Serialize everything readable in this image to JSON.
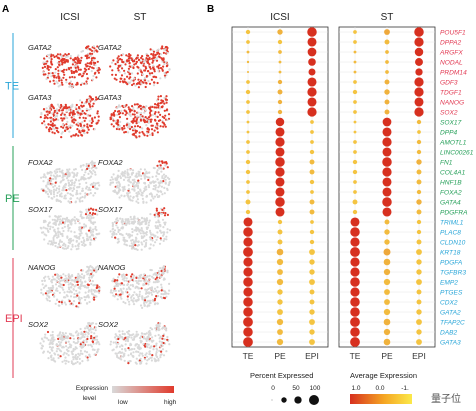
{
  "panel_a": {
    "label": "A",
    "columns": [
      "ICSI",
      "ST"
    ],
    "groups": [
      {
        "name": "TE",
        "color": "#2aa6d8",
        "genes": [
          "GATA2",
          "GATA3"
        ]
      },
      {
        "name": "PE",
        "color": "#27a05a",
        "genes": [
          "FOXA2",
          "SOX17"
        ]
      },
      {
        "name": "EPI",
        "color": "#e23b54",
        "genes": [
          "NANOG",
          "SOX2"
        ]
      }
    ],
    "legend": {
      "title": "Expression\nlevel",
      "low": "low",
      "high": "high",
      "low_color": "#d9d9d9",
      "high_color": "#e03a2c"
    }
  },
  "panel_b": {
    "label": "B",
    "columns": [
      "ICSI",
      "ST"
    ],
    "legend_size_title": "Percent Expressed",
    "legend_size_values": [
      "0",
      "50",
      "100"
    ],
    "legend_color_title": "Average Expression",
    "legend_color_ticks": [
      "1.0",
      "0.0",
      "-1."
    ],
    "watermark": "量子位"
  },
  "chart_data": {
    "type": "dotplot",
    "panels": [
      "ICSI",
      "ST"
    ],
    "x_categories": [
      "TE",
      "PE",
      "EPI"
    ],
    "genes": [
      {
        "name": "POU5F1",
        "group": "EPI"
      },
      {
        "name": "DPPA2",
        "group": "EPI"
      },
      {
        "name": "ARGFX",
        "group": "EPI"
      },
      {
        "name": "NODAL",
        "group": "EPI"
      },
      {
        "name": "PRDM14",
        "group": "EPI"
      },
      {
        "name": "GDF3",
        "group": "EPI"
      },
      {
        "name": "TDGF1",
        "group": "EPI"
      },
      {
        "name": "NANOG",
        "group": "EPI"
      },
      {
        "name": "SOX2",
        "group": "EPI"
      },
      {
        "name": "SOX17",
        "group": "PE"
      },
      {
        "name": "DPP4",
        "group": "PE"
      },
      {
        "name": "AMOTL1",
        "group": "PE"
      },
      {
        "name": "LINC00261",
        "group": "PE"
      },
      {
        "name": "FN1",
        "group": "PE"
      },
      {
        "name": "COL4A1",
        "group": "PE"
      },
      {
        "name": "HNF1B",
        "group": "PE"
      },
      {
        "name": "FOXA2",
        "group": "PE"
      },
      {
        "name": "GATA4",
        "group": "PE"
      },
      {
        "name": "PDGFRA",
        "group": "PE"
      },
      {
        "name": "TRIML1",
        "group": "TE"
      },
      {
        "name": "PLAC8",
        "group": "TE"
      },
      {
        "name": "CLDN10",
        "group": "TE"
      },
      {
        "name": "KRT18",
        "group": "TE"
      },
      {
        "name": "PDGFA",
        "group": "TE"
      },
      {
        "name": "TGFBR3",
        "group": "TE"
      },
      {
        "name": "EMP2",
        "group": "TE"
      },
      {
        "name": "PTGES",
        "group": "TE"
      },
      {
        "name": "CDX2",
        "group": "TE"
      },
      {
        "name": "GATA2",
        "group": "TE"
      },
      {
        "name": "TFAP2C",
        "group": "TE"
      },
      {
        "name": "DAB2",
        "group": "TE"
      },
      {
        "name": "GATA3",
        "group": "TE"
      }
    ],
    "group_colors": {
      "EPI": "#e23b54",
      "PE": "#27a05a",
      "TE": "#2aa6d8"
    },
    "percent_expressed": {
      "ICSI": [
        [
          15,
          25,
          90
        ],
        [
          10,
          15,
          80
        ],
        [
          5,
          10,
          75
        ],
        [
          3,
          5,
          55
        ],
        [
          2,
          5,
          45
        ],
        [
          10,
          15,
          80
        ],
        [
          15,
          20,
          85
        ],
        [
          10,
          15,
          80
        ],
        [
          10,
          15,
          85
        ],
        [
          5,
          70,
          10
        ],
        [
          5,
          80,
          10
        ],
        [
          10,
          85,
          10
        ],
        [
          10,
          80,
          15
        ],
        [
          15,
          90,
          20
        ],
        [
          15,
          85,
          20
        ],
        [
          10,
          80,
          15
        ],
        [
          10,
          80,
          10
        ],
        [
          20,
          90,
          20
        ],
        [
          15,
          80,
          20
        ],
        [
          80,
          15,
          10
        ],
        [
          90,
          20,
          15
        ],
        [
          85,
          20,
          15
        ],
        [
          95,
          40,
          30
        ],
        [
          85,
          35,
          25
        ],
        [
          85,
          30,
          25
        ],
        [
          90,
          35,
          30
        ],
        [
          85,
          25,
          20
        ],
        [
          90,
          25,
          20
        ],
        [
          90,
          30,
          25
        ],
        [
          95,
          35,
          30
        ],
        [
          90,
          30,
          25
        ],
        [
          95,
          35,
          30
        ]
      ],
      "ST": [
        [
          10,
          30,
          90
        ],
        [
          10,
          20,
          85
        ],
        [
          5,
          10,
          70
        ],
        [
          5,
          10,
          60
        ],
        [
          5,
          10,
          50
        ],
        [
          10,
          20,
          85
        ],
        [
          15,
          25,
          85
        ],
        [
          10,
          20,
          80
        ],
        [
          10,
          20,
          85
        ],
        [
          5,
          75,
          15
        ],
        [
          5,
          80,
          10
        ],
        [
          10,
          85,
          15
        ],
        [
          10,
          80,
          15
        ],
        [
          15,
          90,
          25
        ],
        [
          15,
          85,
          20
        ],
        [
          10,
          80,
          20
        ],
        [
          10,
          80,
          15
        ],
        [
          20,
          90,
          25
        ],
        [
          15,
          80,
          20
        ],
        [
          80,
          20,
          15
        ],
        [
          90,
          25,
          15
        ],
        [
          85,
          25,
          20
        ],
        [
          95,
          45,
          30
        ],
        [
          85,
          40,
          25
        ],
        [
          85,
          35,
          25
        ],
        [
          90,
          35,
          30
        ],
        [
          85,
          30,
          20
        ],
        [
          90,
          30,
          20
        ],
        [
          90,
          35,
          25
        ],
        [
          95,
          40,
          30
        ],
        [
          90,
          35,
          25
        ],
        [
          95,
          40,
          30
        ]
      ]
    },
    "average_expression": {
      "ICSI": [
        [
          -0.6,
          -0.4,
          1.0
        ],
        [
          -0.6,
          -0.6,
          1.0
        ],
        [
          -0.5,
          -0.5,
          1.0
        ],
        [
          -0.5,
          -0.5,
          1.0
        ],
        [
          -0.5,
          -0.5,
          1.0
        ],
        [
          -0.6,
          -0.4,
          1.0
        ],
        [
          -0.6,
          -0.4,
          1.0
        ],
        [
          -0.6,
          -0.4,
          1.0
        ],
        [
          -0.6,
          -0.4,
          1.0
        ],
        [
          -0.6,
          1.0,
          -0.6
        ],
        [
          -0.6,
          1.0,
          -0.6
        ],
        [
          -0.6,
          1.0,
          -0.6
        ],
        [
          -0.6,
          1.0,
          -0.6
        ],
        [
          -0.6,
          1.0,
          -0.5
        ],
        [
          -0.6,
          1.0,
          -0.5
        ],
        [
          -0.6,
          1.0,
          -0.6
        ],
        [
          -0.6,
          1.0,
          -0.6
        ],
        [
          -0.6,
          1.0,
          -0.5
        ],
        [
          -0.6,
          1.0,
          -0.5
        ],
        [
          1.0,
          -0.6,
          -0.6
        ],
        [
          1.0,
          -0.6,
          -0.6
        ],
        [
          1.0,
          -0.6,
          -0.6
        ],
        [
          1.0,
          -0.4,
          -0.6
        ],
        [
          1.0,
          -0.5,
          -0.6
        ],
        [
          1.0,
          -0.5,
          -0.6
        ],
        [
          1.0,
          -0.5,
          -0.6
        ],
        [
          1.0,
          -0.6,
          -0.6
        ],
        [
          1.0,
          -0.6,
          -0.6
        ],
        [
          1.0,
          -0.6,
          -0.6
        ],
        [
          1.0,
          -0.5,
          -0.6
        ],
        [
          1.0,
          -0.5,
          -0.6
        ],
        [
          1.0,
          -0.5,
          -0.6
        ]
      ],
      "ST": [
        [
          -0.6,
          -0.3,
          1.0
        ],
        [
          -0.6,
          -0.5,
          1.0
        ],
        [
          -0.5,
          -0.5,
          1.0
        ],
        [
          -0.5,
          -0.5,
          1.0
        ],
        [
          -0.5,
          -0.5,
          1.0
        ],
        [
          -0.6,
          -0.4,
          1.0
        ],
        [
          -0.6,
          -0.4,
          1.0
        ],
        [
          -0.6,
          -0.4,
          1.0
        ],
        [
          -0.6,
          -0.4,
          1.0
        ],
        [
          -0.6,
          1.0,
          -0.5
        ],
        [
          -0.6,
          1.0,
          -0.6
        ],
        [
          -0.6,
          1.0,
          -0.5
        ],
        [
          -0.6,
          1.0,
          -0.5
        ],
        [
          -0.6,
          1.0,
          -0.4
        ],
        [
          -0.6,
          1.0,
          -0.5
        ],
        [
          -0.6,
          1.0,
          -0.5
        ],
        [
          -0.6,
          1.0,
          -0.5
        ],
        [
          -0.6,
          1.0,
          -0.4
        ],
        [
          -0.6,
          1.0,
          -0.5
        ],
        [
          1.0,
          -0.5,
          -0.6
        ],
        [
          1.0,
          -0.5,
          -0.6
        ],
        [
          1.0,
          -0.5,
          -0.6
        ],
        [
          1.0,
          -0.3,
          -0.6
        ],
        [
          1.0,
          -0.4,
          -0.6
        ],
        [
          1.0,
          -0.4,
          -0.6
        ],
        [
          1.0,
          -0.5,
          -0.6
        ],
        [
          1.0,
          -0.5,
          -0.6
        ],
        [
          1.0,
          -0.5,
          -0.6
        ],
        [
          1.0,
          -0.5,
          -0.6
        ],
        [
          1.0,
          -0.4,
          -0.6
        ],
        [
          1.0,
          -0.4,
          -0.6
        ],
        [
          1.0,
          -0.4,
          -0.6
        ]
      ]
    },
    "color_scale": {
      "low_color": "#fbe94a",
      "high_color": "#d7301f",
      "range": [
        -1,
        1
      ]
    },
    "size_legend": [
      0,
      50,
      100
    ]
  }
}
